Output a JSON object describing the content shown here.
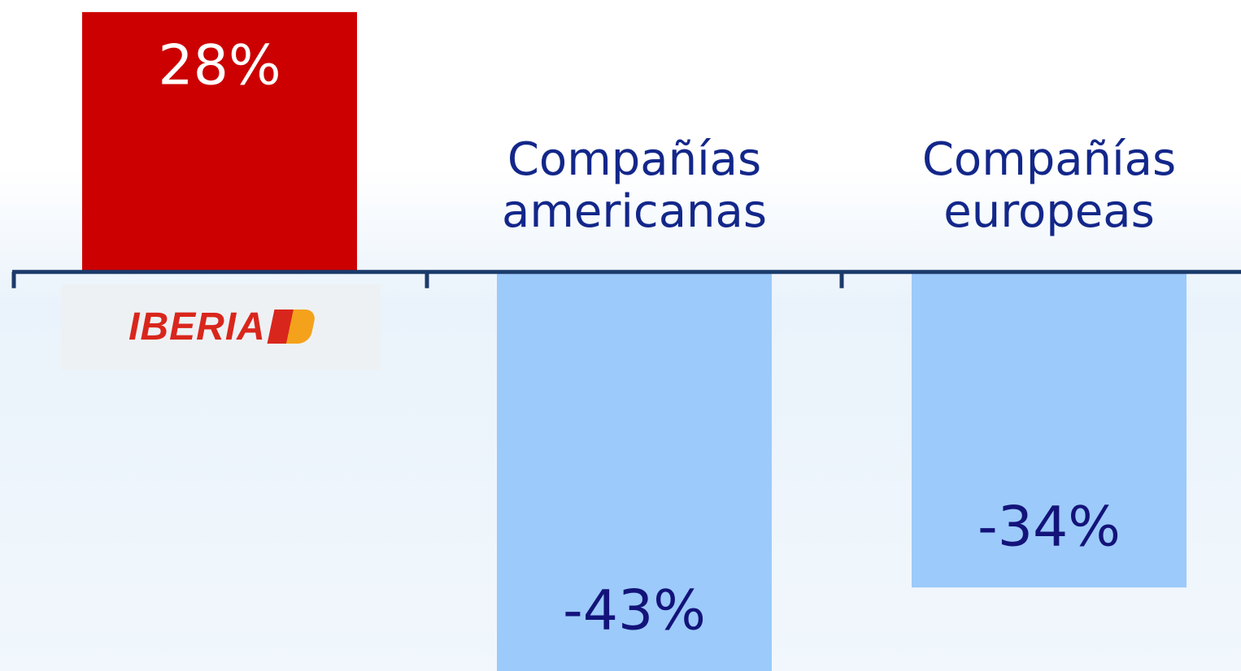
{
  "chart_data": {
    "type": "bar",
    "categories": [
      "IBERIA",
      "Compañías americanas",
      "Compañías europeas"
    ],
    "values": [
      28,
      -43,
      -34
    ],
    "value_labels": [
      "28%",
      "-43%",
      "-34%"
    ],
    "colors": [
      "#cc0000",
      "#9ccafa",
      "#9ccafa"
    ],
    "ylim": [
      -43,
      29.3
    ]
  }
}
